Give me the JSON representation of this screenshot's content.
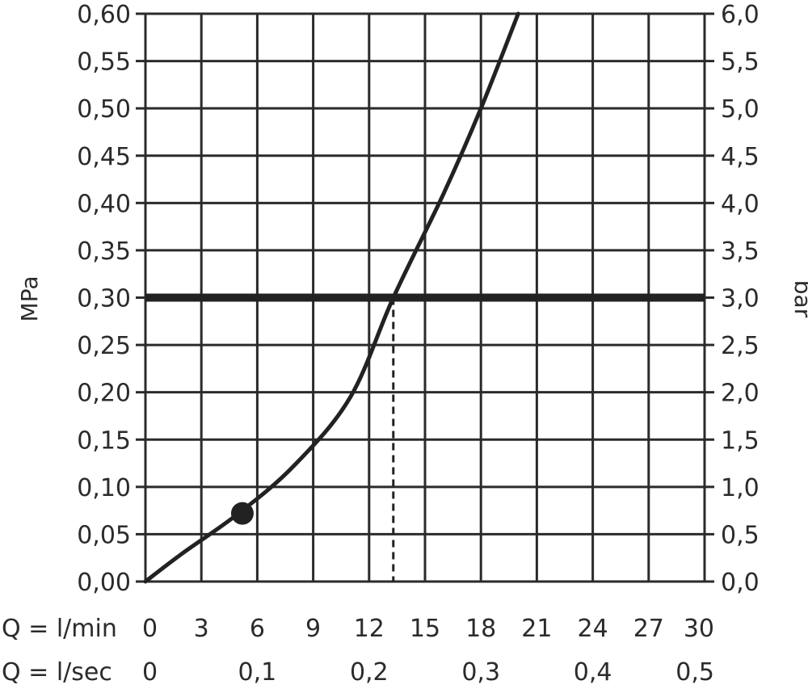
{
  "chart_data": {
    "type": "line",
    "title": "",
    "x": [
      0,
      2,
      5,
      8,
      11,
      13.3,
      16,
      18,
      20
    ],
    "series": [
      {
        "values": [
          0,
          0.03,
          0.072,
          0.123,
          0.195,
          0.3,
          0.41,
          0.5,
          0.6
        ]
      }
    ],
    "marker": {
      "x": 5.2,
      "y": 0.072
    },
    "reference_line": {
      "y": 0.3
    },
    "dashed_drop": {
      "x": 13.3,
      "y": 0.3
    },
    "xlim": [
      0,
      30
    ],
    "ylim": [
      0,
      0.6
    ],
    "grid": true,
    "left_axis": {
      "label": "MPa",
      "ticks": [
        0.0,
        0.05,
        0.1,
        0.15,
        0.2,
        0.25,
        0.3,
        0.35,
        0.4,
        0.45,
        0.5,
        0.55,
        0.6
      ],
      "tick_labels": [
        "0,00",
        "0,05",
        "0,10",
        "0,15",
        "0,20",
        "0,25",
        "0,30",
        "0,35",
        "0,40",
        "0,45",
        "0,50",
        "0,55",
        "0,60"
      ]
    },
    "right_axis": {
      "label": "bar",
      "ticks": [
        0.0,
        0.05,
        0.1,
        0.15,
        0.2,
        0.25,
        0.3,
        0.35,
        0.4,
        0.45,
        0.5,
        0.55,
        0.6
      ],
      "tick_labels": [
        "0,0",
        "0,5",
        "1,0",
        "1,5",
        "2,0",
        "2,5",
        "3,0",
        "3,5",
        "4,0",
        "4,5",
        "5,0",
        "5,5",
        "6,0"
      ]
    },
    "x_axis_rows": [
      {
        "label": "Q = l/min",
        "ticks": [
          0,
          3,
          6,
          9,
          12,
          15,
          18,
          21,
          24,
          27,
          30
        ],
        "tick_labels": [
          "0",
          "3",
          "6",
          "9",
          "12",
          "15",
          "18",
          "21",
          "24",
          "27",
          "30"
        ]
      },
      {
        "label": "Q = l/sec",
        "ticks": [
          0,
          6,
          12,
          18,
          24,
          30
        ],
        "tick_labels": [
          "0",
          "0,1",
          "0,2",
          "0,3",
          "0,4",
          "0,5"
        ]
      }
    ],
    "colors": {
      "line": "#222222",
      "grid": "#2b2b2b",
      "background": "#ffffff"
    }
  }
}
